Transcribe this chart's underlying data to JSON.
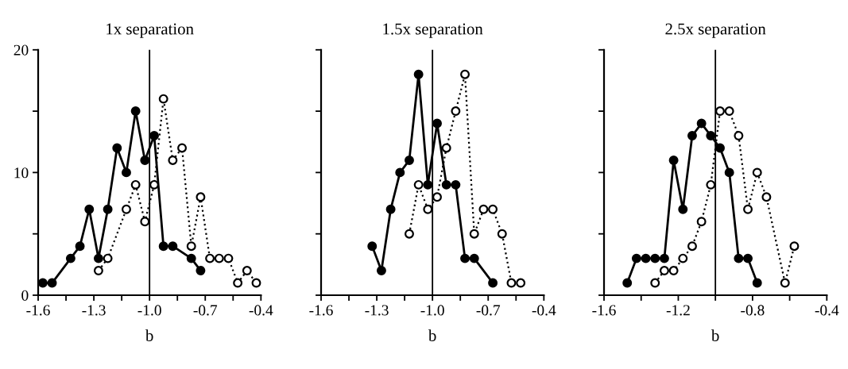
{
  "chart_data": [
    {
      "type": "line",
      "title": "1x separation",
      "xlabel": "b",
      "xlim": [
        -1.6,
        -0.4
      ],
      "ylim": [
        0,
        20
      ],
      "xticks": [
        -1.6,
        {
          "value": -1.45,
          "label": null
        },
        -1.3,
        {
          "value": -1.15,
          "label": null
        },
        {
          "value": -1.0,
          "label": "-1.0"
        },
        {
          "value": -0.85,
          "label": null
        },
        -0.7,
        {
          "value": -0.55,
          "label": null
        },
        -0.4
      ],
      "yticks": [
        0,
        {
          "value": 5,
          "label": null
        },
        10,
        {
          "value": 15,
          "label": null
        },
        20
      ],
      "ref_lines": [
        {
          "axis": "x",
          "value": -1.0,
          "color": "#000000"
        }
      ],
      "grid": false,
      "legend": false,
      "series": [
        {
          "color": "#000000",
          "marker": "circle",
          "line_style": "solid",
          "x": [
            -1.575,
            -1.525,
            -1.425,
            -1.375,
            -1.325,
            -1.275,
            -1.225,
            -1.175,
            -1.125,
            -1.075,
            -1.025,
            -0.975,
            -0.925,
            -0.875,
            -0.775,
            -0.725
          ],
          "values": [
            1,
            1,
            3,
            4,
            7,
            3,
            7,
            12,
            10,
            15,
            11,
            13,
            4,
            4,
            3,
            2
          ]
        },
        {
          "color": "#000000",
          "marker": "circle",
          "line_style": "dotted",
          "x": [
            -1.275,
            -1.225,
            -1.125,
            -1.075,
            -1.025,
            -0.975,
            -0.925,
            -0.875,
            -0.825,
            -0.775,
            -0.725,
            -0.675,
            -0.625,
            -0.575,
            -0.525,
            -0.475,
            -0.425
          ],
          "values": [
            2,
            3,
            7,
            9,
            6,
            9,
            16,
            11,
            12,
            4,
            8,
            3,
            3,
            3,
            1,
            2,
            1
          ]
        }
      ]
    },
    {
      "type": "line",
      "title": "1.5x separation",
      "xlabel": "b",
      "xlim": [
        -1.6,
        -0.4
      ],
      "ylim": [
        0,
        20
      ],
      "tick_labels": "x",
      "xticks": [
        -1.6,
        {
          "value": -1.45,
          "label": null
        },
        -1.3,
        {
          "value": -1.15,
          "label": null
        },
        {
          "value": -1.0,
          "label": "-1.0"
        },
        {
          "value": -0.85,
          "label": null
        },
        -0.7,
        {
          "value": -0.55,
          "label": null
        },
        -0.4
      ],
      "yticks": [
        0,
        5,
        10,
        15,
        20
      ],
      "ref_lines": [
        {
          "axis": "x",
          "value": -1.0,
          "color": "#000000"
        }
      ],
      "grid": false,
      "legend": false,
      "series": [
        {
          "color": "#000000",
          "marker": "circle",
          "line_style": "solid",
          "x": [
            -1.325,
            -1.275,
            -1.225,
            -1.175,
            -1.125,
            -1.075,
            -1.025,
            -0.975,
            -0.925,
            -0.875,
            -0.825,
            -0.775,
            -0.675
          ],
          "values": [
            4,
            2,
            7,
            10,
            11,
            18,
            9,
            14,
            9,
            9,
            3,
            3,
            1
          ]
        },
        {
          "color": "#000000",
          "marker": "circle",
          "line_style": "dotted",
          "x": [
            -1.125,
            -1.075,
            -1.025,
            -0.975,
            -0.925,
            -0.875,
            -0.825,
            -0.775,
            -0.725,
            -0.675,
            -0.625,
            -0.575,
            -0.525
          ],
          "values": [
            5,
            9,
            7,
            8,
            12,
            15,
            18,
            5,
            7,
            7,
            5,
            1,
            1
          ]
        }
      ]
    },
    {
      "type": "line",
      "title": "2.5x separation",
      "xlabel": "b",
      "xlim": [
        -1.6,
        -0.4
      ],
      "ylim": [
        0,
        20
      ],
      "tick_labels": "x",
      "xticks": [
        -1.6,
        {
          "value": -1.4,
          "label": null
        },
        -1.2,
        {
          "value": -1.0,
          "label": null
        },
        -0.8,
        {
          "value": -0.6,
          "label": null
        },
        -0.4
      ],
      "yticks": [
        0,
        5,
        10,
        15,
        20
      ],
      "ref_lines": [
        {
          "axis": "x",
          "value": -1.0,
          "color": "#000000"
        }
      ],
      "grid": false,
      "legend": false,
      "series": [
        {
          "color": "#000000",
          "marker": "circle",
          "line_style": "solid",
          "x": [
            -1.475,
            -1.425,
            -1.375,
            -1.325,
            -1.275,
            -1.225,
            -1.175,
            -1.125,
            -1.075,
            -1.025,
            -0.975,
            -0.925,
            -0.875,
            -0.825,
            -0.775
          ],
          "values": [
            1,
            3,
            3,
            3,
            3,
            11,
            7,
            13,
            14,
            13,
            12,
            10,
            3,
            3,
            1
          ]
        },
        {
          "color": "#000000",
          "marker": "circle",
          "line_style": "dotted",
          "x": [
            -1.325,
            -1.275,
            -1.225,
            -1.175,
            -1.125,
            -1.075,
            -1.025,
            -0.975,
            -0.925,
            -0.875,
            -0.825,
            -0.775,
            -0.725,
            -0.625,
            -0.575
          ],
          "values": [
            1,
            2,
            2,
            3,
            4,
            6,
            9,
            15,
            15,
            13,
            7,
            10,
            8,
            1,
            4
          ]
        }
      ]
    }
  ]
}
